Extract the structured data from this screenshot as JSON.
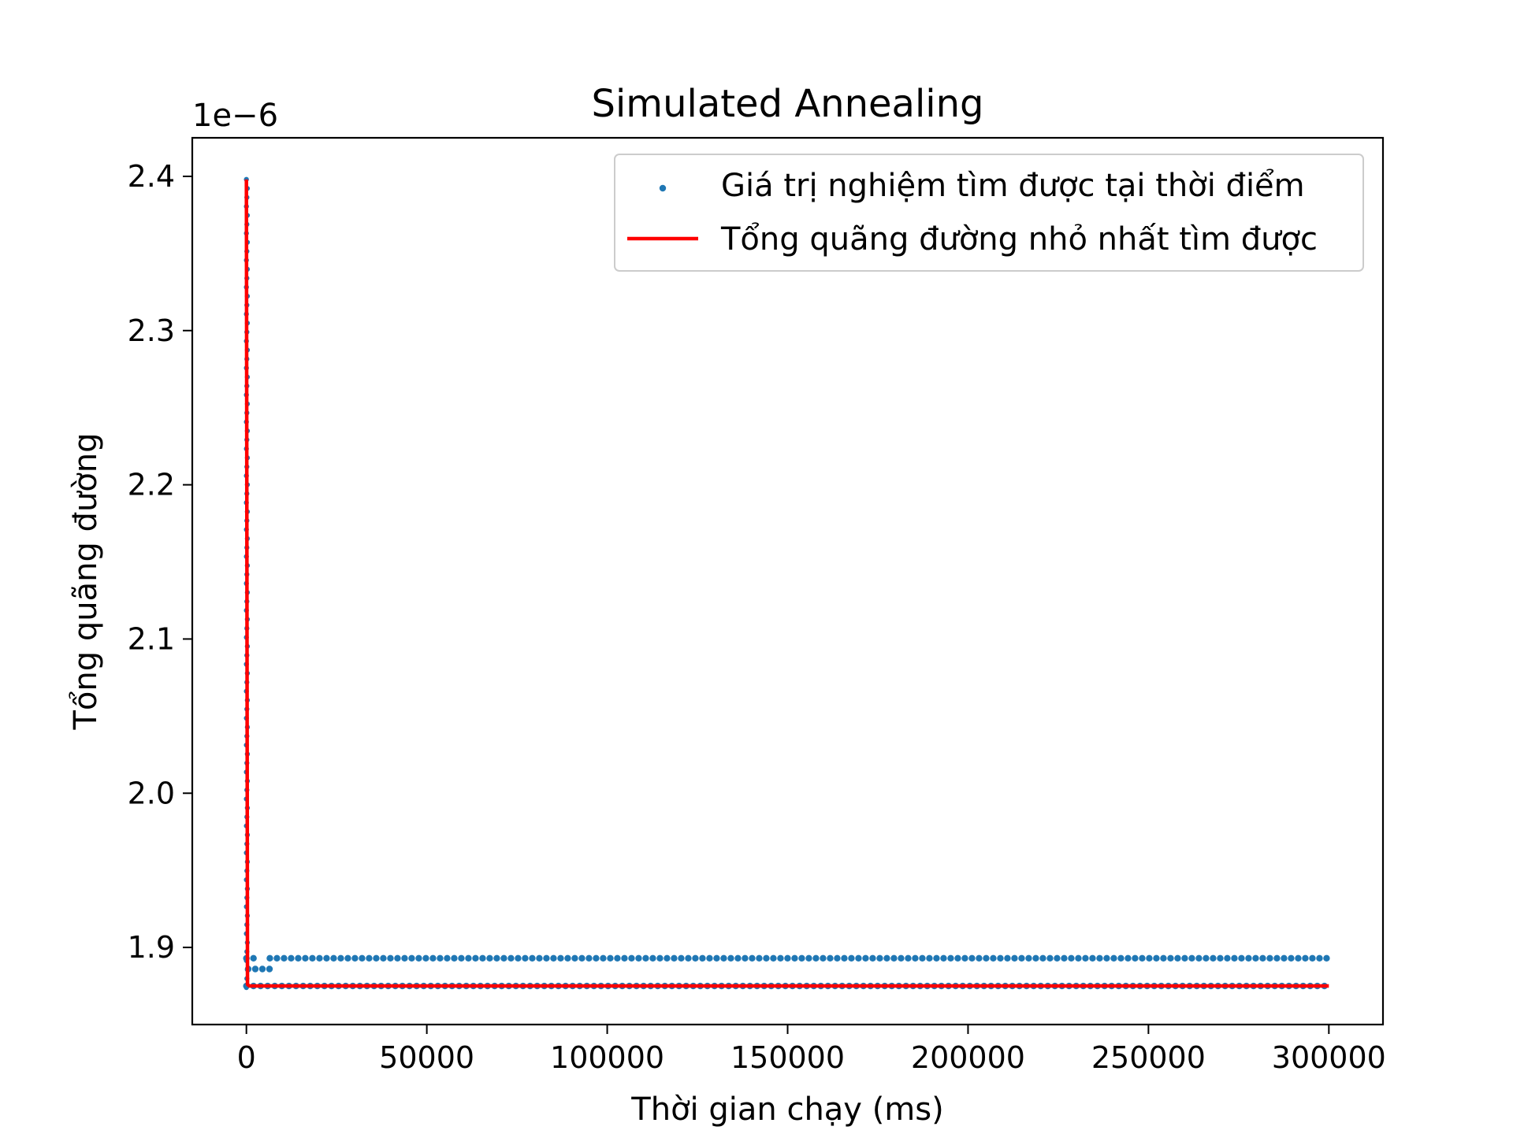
{
  "chart_data": {
    "type": "scatter",
    "title": "Simulated Annealing",
    "xlabel": "Thời gian chạy (ms)",
    "ylabel": "Tổng quãng đường",
    "y_offset_label": "1e−6",
    "xlim": [
      -15000,
      315000
    ],
    "ylim": [
      1.85,
      2.425
    ],
    "x_ticks": [
      0,
      50000,
      100000,
      150000,
      200000,
      250000,
      300000
    ],
    "x_tick_labels": [
      "0",
      "50000",
      "100000",
      "150000",
      "200000",
      "250000",
      "300000"
    ],
    "y_ticks": [
      1.9,
      2.0,
      2.1,
      2.2,
      2.3,
      2.4
    ],
    "y_tick_labels": [
      "1.9",
      "2.0",
      "2.1",
      "2.2",
      "2.3",
      "2.4"
    ],
    "grid": false,
    "legend_position": "top-right",
    "series": [
      {
        "name": "Giá trị nghiệm tìm được tại thời điểm",
        "kind": "scatter",
        "color": "#1f77b4",
        "vertical_spike": {
          "x": 0,
          "y_min": 1.874,
          "y_max": 2.398
        },
        "segments": [
          {
            "x_start": 0,
            "x_end": 3500,
            "y": 1.893
          },
          {
            "x_start": 500,
            "x_end": 7000,
            "y": 1.886
          },
          {
            "x_start": 6500,
            "x_end": 300000,
            "y": 1.893
          },
          {
            "x_start": 0,
            "x_end": 300000,
            "y": 1.875
          }
        ]
      },
      {
        "name": "Tổng quãng đường nhỏ nhất tìm được",
        "kind": "line",
        "color": "#ff0000",
        "points": [
          [
            0,
            2.398
          ],
          [
            300,
            1.876
          ],
          [
            800,
            1.875
          ],
          [
            300000,
            1.875
          ]
        ]
      }
    ]
  }
}
